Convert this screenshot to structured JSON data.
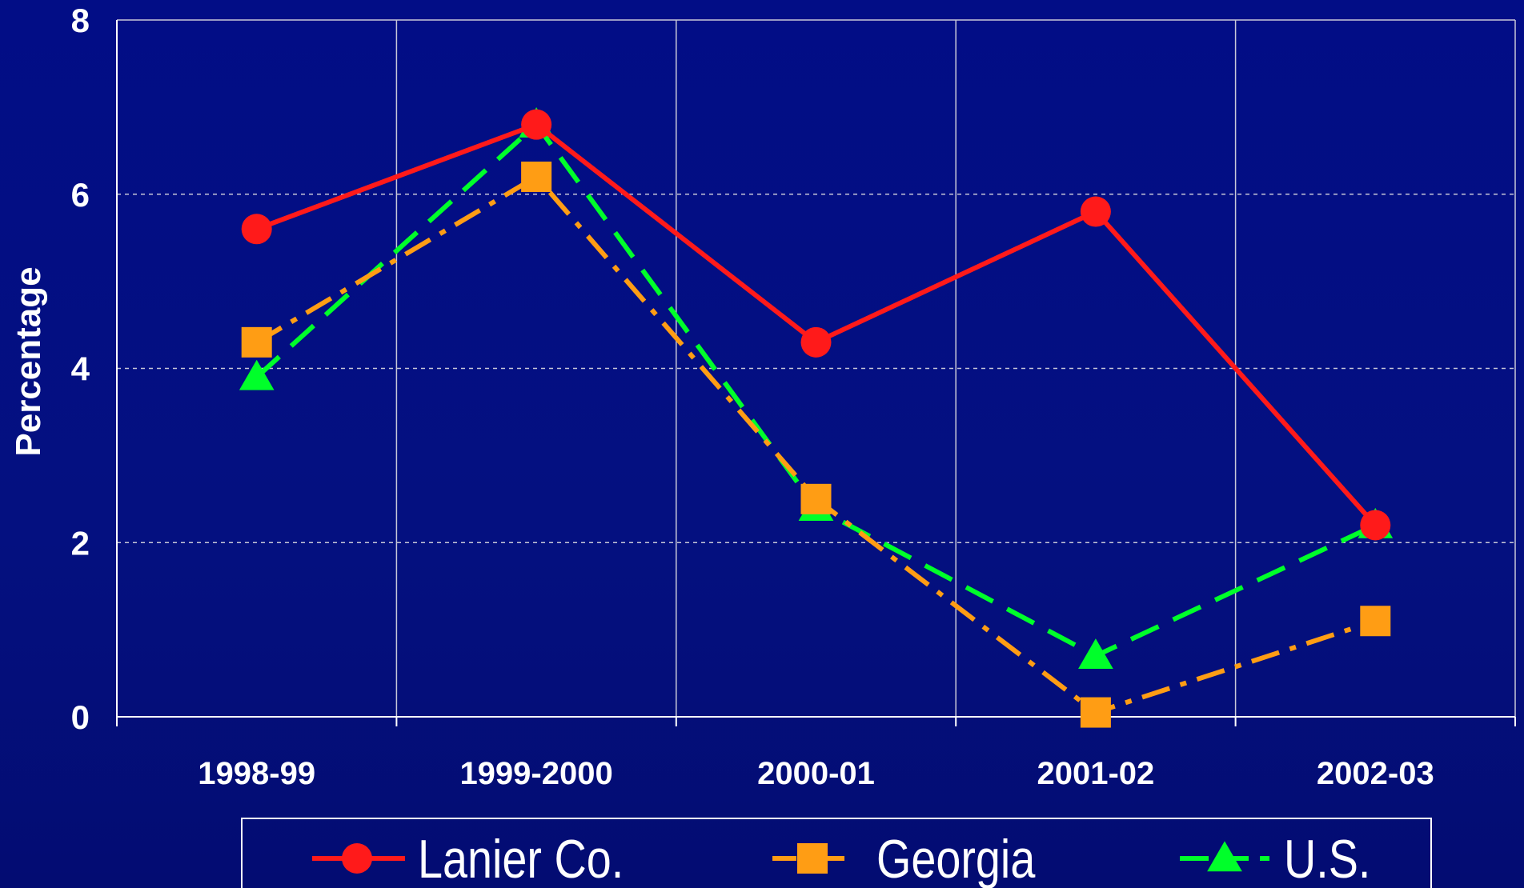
{
  "chart_data": {
    "type": "line",
    "categories": [
      "1998-99",
      "1999-2000",
      "2000-01",
      "2001-02",
      "2002-03"
    ],
    "ylabel": "Percentage",
    "xlabel": "",
    "title": "",
    "ylim": [
      0,
      8
    ],
    "yticks": [
      "0",
      "2",
      "4",
      "6",
      "8"
    ],
    "grid": {
      "horizontal": "dashed",
      "vertical": "solid"
    },
    "legend_position": "bottom",
    "series": [
      {
        "name": "Lanier Co.",
        "values": [
          5.6,
          6.8,
          4.3,
          5.8,
          2.2
        ],
        "color": "#ff1a1a",
        "marker": "circle",
        "line": "solid"
      },
      {
        "name": "Georgia",
        "values": [
          4.3,
          6.2,
          2.5,
          0.05,
          1.1
        ],
        "color": "#ff9d14",
        "marker": "square",
        "line": "dash-dot"
      },
      {
        "name": "U.S.",
        "values": [
          3.9,
          6.8,
          2.4,
          0.7,
          2.2
        ],
        "color": "#00ff2a",
        "marker": "triangle",
        "line": "dashed"
      }
    ]
  },
  "colors": {
    "background": "#020d86",
    "axis": "#ffffff"
  }
}
